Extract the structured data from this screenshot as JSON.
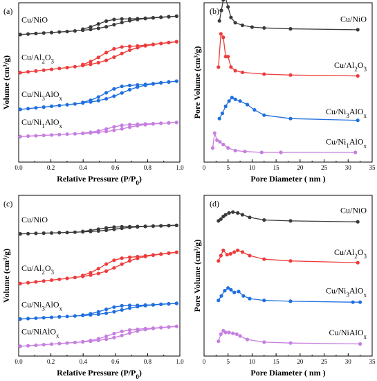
{
  "colors": {
    "black": "#3a3a3a",
    "red": "#ee3b3b",
    "blue": "#1f6fe0",
    "purple": "#c77ee0"
  },
  "chart_data": [
    {
      "type": "line",
      "panel": "(a)",
      "xlabel": "Relative Pressure (P/P",
      "xlabel_sub": "0",
      "xlabel_end": ")",
      "ylabel": "Volume (cm³/g)",
      "xlim": [
        0,
        1.0
      ],
      "xticks": [
        "0.0",
        "0.2",
        "0.4",
        "0.6",
        "0.8",
        "1.0"
      ],
      "yticks_shown": false,
      "series": [
        {
          "name": "Cu/NiO",
          "color": "#3a3a3a",
          "offset": 0.8,
          "amp": 0.13,
          "hyst": 0.025
        },
        {
          "name": "Cu/Al2O3",
          "color": "#ee3b3b",
          "offset": 0.56,
          "amp": 0.22,
          "hyst": 0.035
        },
        {
          "name": "Cu/Ni3AlOx",
          "color": "#1f6fe0",
          "offset": 0.33,
          "amp": 0.2,
          "hyst": 0.03
        },
        {
          "name": "Cu/Ni1AlOx",
          "color": "#c77ee0",
          "offset": 0.16,
          "amp": 0.1,
          "hyst": 0.015
        }
      ]
    },
    {
      "type": "line",
      "panel": "(b)",
      "xlabel": "Pore Diameter ( nm )",
      "ylabel": "Pore Volume (cm³/g)",
      "xlim": [
        0,
        35
      ],
      "xticks": [
        "0",
        "5",
        "10",
        "15",
        "20",
        "25",
        "30",
        "35"
      ],
      "yticks_shown": false,
      "series": [
        {
          "name": "Cu/NiO",
          "color": "#3a3a3a",
          "base": 0.82,
          "x": [
            3.2,
            3.6,
            4.0,
            4.4,
            5.0,
            5.6,
            6.5,
            8.0,
            10.0,
            12.5,
            18.0,
            32.0
          ],
          "y": [
            0.06,
            0.12,
            0.18,
            0.2,
            0.14,
            0.08,
            0.05,
            0.035,
            0.025,
            0.02,
            0.015,
            0.01
          ]
        },
        {
          "name": "Cu/Al2O3",
          "color": "#ee3b3b",
          "base": 0.53,
          "x": [
            3.0,
            3.5,
            4.0,
            4.5,
            5.0,
            5.6,
            6.5,
            8.0,
            12.5,
            18.0,
            32.0
          ],
          "y": [
            0.06,
            0.25,
            0.23,
            0.12,
            0.12,
            0.06,
            0.04,
            0.03,
            0.02,
            0.015,
            0.01
          ]
        },
        {
          "name": "Cu/Ni3AlOx",
          "color": "#1f6fe0",
          "base": 0.24,
          "x": [
            3.2,
            3.8,
            4.5,
            5.2,
            5.8,
            6.5,
            7.5,
            9.0,
            10.5,
            12.5,
            18.0,
            32.0
          ],
          "y": [
            0.03,
            0.06,
            0.1,
            0.13,
            0.15,
            0.14,
            0.13,
            0.11,
            0.08,
            0.05,
            0.03,
            0.02
          ]
        },
        {
          "name": "Cu/Ni1AlOx",
          "color": "#c77ee0",
          "base": 0.05,
          "x": [
            1.8,
            2.2,
            2.7,
            3.3,
            4.0,
            5.0,
            6.5,
            8.5,
            12.0,
            16.0,
            31.5
          ],
          "y": [
            0.035,
            0.12,
            0.08,
            0.07,
            0.055,
            0.035,
            0.02,
            0.015,
            0.01,
            0.01,
            0.01
          ]
        }
      ]
    },
    {
      "type": "line",
      "panel": "(c)",
      "xlabel": "Relative Pressure (P/P",
      "xlabel_sub": "0",
      "xlabel_end": ")",
      "ylabel": "Volume (cm³/g)",
      "xlim": [
        0,
        1.0
      ],
      "xticks": [
        "0.0",
        "0.2",
        "0.4",
        "0.6",
        "0.8",
        "1.0"
      ],
      "yticks_shown": false,
      "series": [
        {
          "name": "Cu/NiO",
          "color": "#3a3a3a",
          "offset": 0.76,
          "amp": 0.06,
          "hyst": 0.01
        },
        {
          "name": "Cu/Al2O3",
          "color": "#ee3b3b",
          "offset": 0.45,
          "amp": 0.22,
          "hyst": 0.03
        },
        {
          "name": "Cu/Ni3AlOx",
          "color": "#1f6fe0",
          "offset": 0.23,
          "amp": 0.11,
          "hyst": 0.02
        },
        {
          "name": "Cu/NiAlOx",
          "color": "#c77ee0",
          "offset": 0.06,
          "amp": 0.14,
          "hyst": 0.015
        }
      ]
    },
    {
      "type": "line",
      "panel": "(d)",
      "xlabel": "Pore Diameter ( nm )",
      "ylabel": "Pore Volume (cm³/g)",
      "xlim": [
        0,
        35
      ],
      "xticks": [
        "0",
        "5",
        "10",
        "15",
        "20",
        "25",
        "30",
        "35"
      ],
      "yticks_shown": false,
      "series": [
        {
          "name": "Cu/NiO",
          "color": "#3a3a3a",
          "base": 0.83,
          "x": [
            3.0,
            3.5,
            4.0,
            4.5,
            5.2,
            6.0,
            7.0,
            8.0,
            9.5,
            12.5,
            18.0,
            32.0
          ],
          "y": [
            0.01,
            0.02,
            0.035,
            0.045,
            0.055,
            0.06,
            0.055,
            0.045,
            0.03,
            0.015,
            0.01,
            0.005
          ]
        },
        {
          "name": "Cu/Al2O3",
          "color": "#ee3b3b",
          "base": 0.57,
          "x": [
            3.0,
            3.5,
            4.0,
            4.8,
            5.5,
            6.3,
            7.0,
            8.0,
            9.5,
            12.5,
            18.0,
            32.0
          ],
          "y": [
            0.02,
            0.05,
            0.08,
            0.055,
            0.06,
            0.07,
            0.08,
            0.07,
            0.05,
            0.03,
            0.02,
            0.01
          ]
        },
        {
          "name": "Cu/Ni3AlOx",
          "color": "#1f6fe0",
          "base": 0.33,
          "x": [
            3.0,
            3.6,
            4.3,
            5.0,
            5.6,
            6.3,
            7.2,
            8.2,
            9.5,
            12.5,
            18.0,
            31.0,
            32.5
          ],
          "y": [
            0.015,
            0.04,
            0.07,
            0.085,
            0.075,
            0.06,
            0.065,
            0.04,
            0.025,
            0.015,
            0.01,
            0.005,
            0.005
          ]
        },
        {
          "name": "Cu/NiAlOx",
          "color": "#c77ee0",
          "base": 0.07,
          "x": [
            3.0,
            3.5,
            4.0,
            4.5,
            5.2,
            6.0,
            6.8,
            7.5,
            9.0,
            12.5,
            18.0,
            32.5
          ],
          "y": [
            0.02,
            0.06,
            0.08,
            0.07,
            0.07,
            0.065,
            0.06,
            0.05,
            0.03,
            0.015,
            0.01,
            0.005
          ]
        }
      ]
    }
  ]
}
